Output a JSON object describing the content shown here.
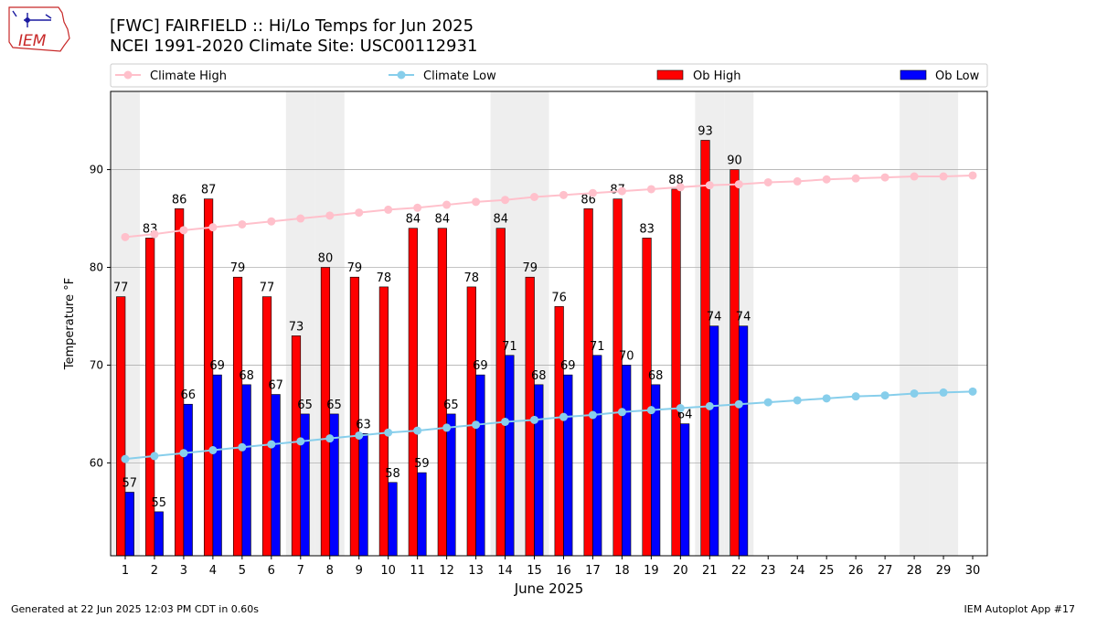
{
  "header": {
    "title_line1": "[FWC] FAIRFIELD :: Hi/Lo Temps for Jun 2025",
    "title_line2": "NCEI 1991-2020 Climate Site: USC00112931"
  },
  "logo": {
    "text": "IEM"
  },
  "footer": {
    "generated": "Generated at 22 Jun 2025 12:03 PM CDT in 0.60s",
    "app": "IEM Autoplot App #17"
  },
  "colors": {
    "ob_high": "#ff0000",
    "ob_low": "#0000ff",
    "climate_high": "#ffc0cb",
    "climate_low": "#87ceeb",
    "weekend_shade": "#eeeeee",
    "grid": "#b0b0b0"
  },
  "chart_data": {
    "type": "bar",
    "title": "[FWC] FAIRFIELD :: Hi/Lo Temps for Jun 2025",
    "subtitle": "NCEI 1991-2020 Climate Site: USC00112931",
    "xlabel": "June 2025",
    "ylabel": "Temperature °F",
    "ylim": [
      50.5,
      98
    ],
    "yticks": [
      60,
      70,
      80,
      90
    ],
    "grid": true,
    "legend_position": "top",
    "categories": [
      "1",
      "2",
      "3",
      "4",
      "5",
      "6",
      "7",
      "8",
      "9",
      "10",
      "11",
      "12",
      "13",
      "14",
      "15",
      "16",
      "17",
      "18",
      "19",
      "20",
      "21",
      "22",
      "23",
      "24",
      "25",
      "26",
      "27",
      "28",
      "29",
      "30"
    ],
    "shaded_days": [
      1,
      7,
      8,
      14,
      15,
      21,
      22,
      28,
      29
    ],
    "series": [
      {
        "name": "Climate High",
        "kind": "line",
        "values": [
          83.1,
          83.4,
          83.8,
          84.1,
          84.4,
          84.7,
          85.0,
          85.3,
          85.6,
          85.9,
          86.1,
          86.4,
          86.7,
          86.9,
          87.2,
          87.4,
          87.6,
          87.8,
          88.0,
          88.2,
          88.4,
          88.5,
          88.7,
          88.8,
          89.0,
          89.1,
          89.2,
          89.3,
          89.3,
          89.4
        ]
      },
      {
        "name": "Climate Low",
        "kind": "line",
        "values": [
          60.4,
          60.7,
          61.0,
          61.3,
          61.6,
          61.9,
          62.2,
          62.5,
          62.8,
          63.1,
          63.3,
          63.6,
          63.9,
          64.2,
          64.4,
          64.7,
          64.9,
          65.2,
          65.4,
          65.6,
          65.8,
          66.0,
          66.2,
          66.4,
          66.6,
          66.8,
          66.9,
          67.1,
          67.2,
          67.3
        ]
      },
      {
        "name": "Ob High",
        "kind": "bar",
        "values": [
          77,
          83,
          86,
          87,
          79,
          77,
          73,
          80,
          79,
          78,
          84,
          84,
          78,
          84,
          79,
          76,
          86,
          87,
          83,
          88,
          93,
          90,
          null,
          null,
          null,
          null,
          null,
          null,
          null,
          null
        ]
      },
      {
        "name": "Ob Low",
        "kind": "bar",
        "values": [
          57,
          55,
          66,
          69,
          68,
          67,
          65,
          65,
          63,
          58,
          59,
          65,
          69,
          71,
          68,
          69,
          71,
          70,
          68,
          64,
          74,
          74,
          null,
          null,
          null,
          null,
          null,
          null,
          null,
          null
        ]
      }
    ]
  }
}
